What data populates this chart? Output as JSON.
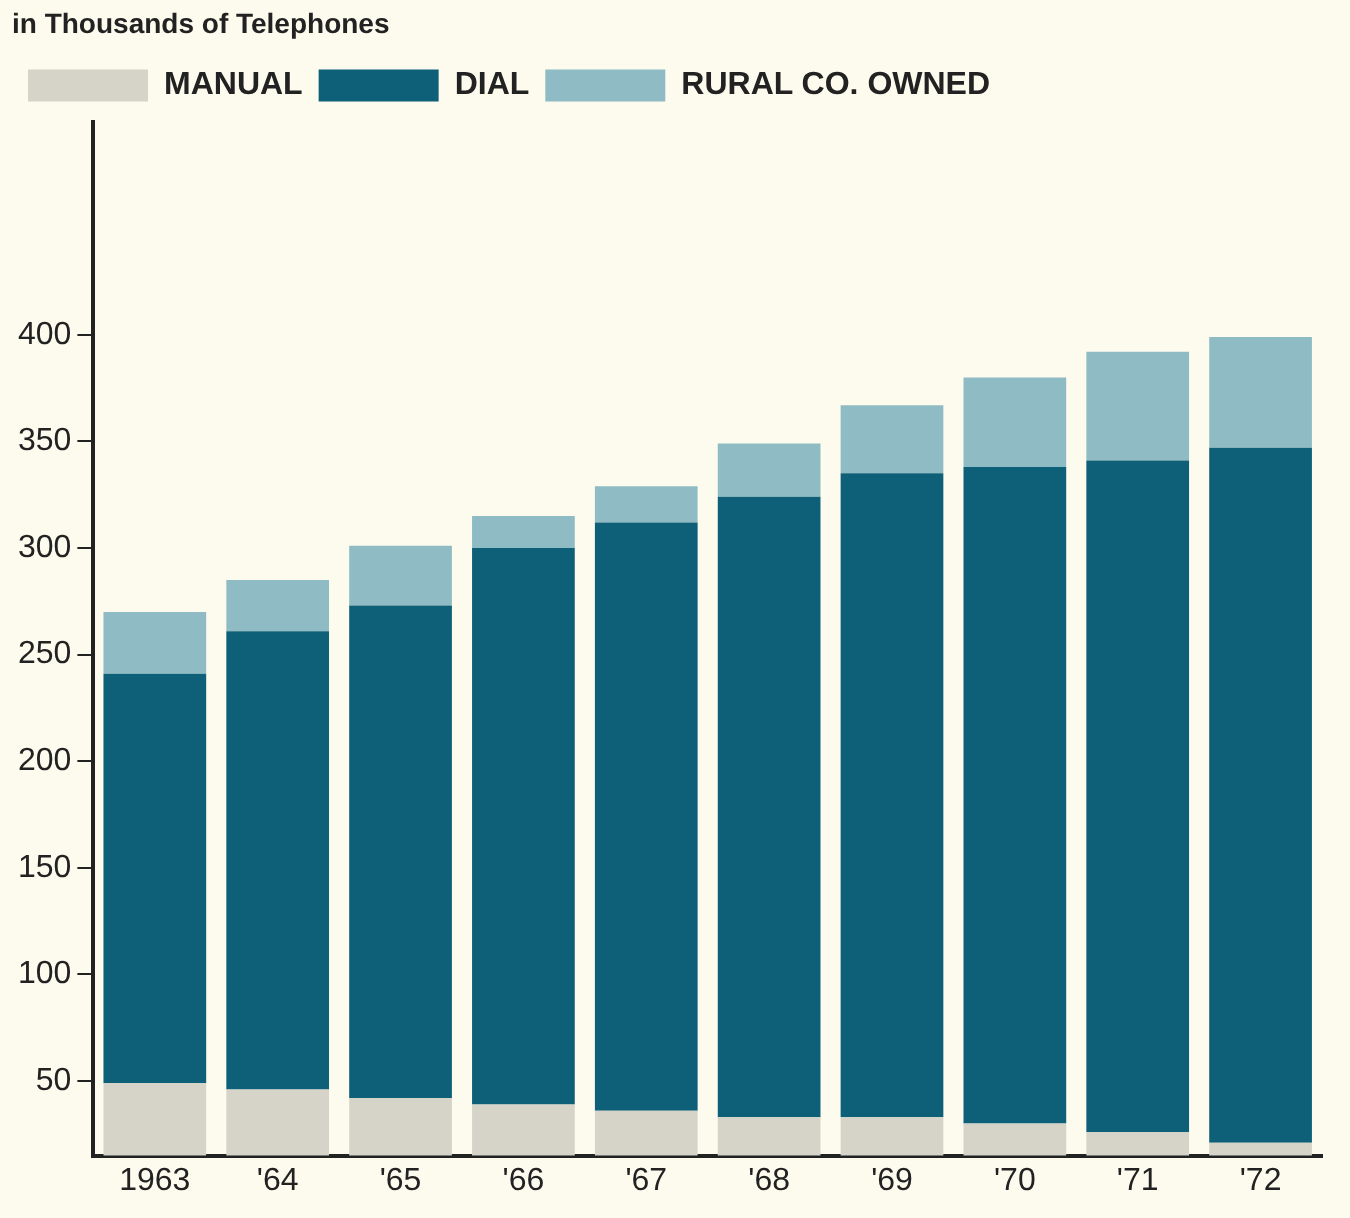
{
  "chart_data": {
    "type": "bar",
    "title": "in Thousands of Telephones",
    "stacked": true,
    "categories": [
      "1963",
      "'64",
      "'65",
      "'66",
      "'67",
      "'68",
      "'69",
      "'70",
      "'71",
      "'72"
    ],
    "series": [
      {
        "name": "MANUAL",
        "color": "#d6d4c8",
        "values": [
          49,
          46,
          42,
          39,
          36,
          33,
          33,
          30,
          26,
          21
        ]
      },
      {
        "name": "DIAL",
        "color": "#0e5f78",
        "values": [
          192,
          215,
          231,
          261,
          276,
          291,
          302,
          308,
          315,
          326
        ]
      },
      {
        "name": "RURAL CO. OWNED",
        "color": "#8fbcc4",
        "values": [
          29,
          24,
          28,
          15,
          17,
          25,
          32,
          42,
          51,
          52
        ]
      }
    ],
    "ylim": [
      15,
      500
    ],
    "yticks": [
      50,
      100,
      150,
      200,
      250,
      300,
      350,
      400
    ],
    "grid": false,
    "legend": "top left"
  }
}
